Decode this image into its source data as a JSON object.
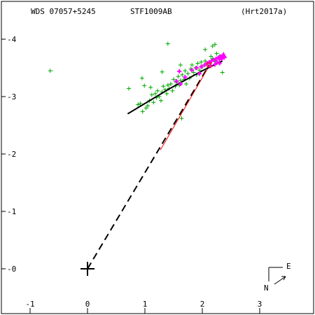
{
  "header": {
    "wds": "WDS 07057+5245",
    "discoverer": "STF1009AB",
    "reference": "(Hrt2017a)"
  },
  "compass": {
    "north": "N",
    "east": "E"
  },
  "colors": {
    "axes": "#000000",
    "measures": "#00aa00",
    "measure_dots": "#00bb00",
    "recent": "#ff00ff",
    "anchor": "#ff0000",
    "orbit": "#000000",
    "residual_line": "#ff0000"
  },
  "chart_data": {
    "type": "scatter",
    "title": "",
    "xlabel": "",
    "ylabel": "",
    "xlim": [
      -1.5,
      3.85
    ],
    "ylim": [
      4.4,
      -0.8
    ],
    "xticks": [
      -1,
      0,
      1,
      2,
      3
    ],
    "yticks": [
      -4,
      -3,
      -2,
      -1,
      0
    ],
    "xticklabels": [
      "-1",
      "0",
      "1",
      "2",
      "3"
    ],
    "yticklabels": [
      "-4",
      "-3",
      "-2",
      "-1",
      "-0"
    ],
    "primary_star": [
      0,
      0
    ],
    "companion_line": {
      "from": [
        0,
        0
      ],
      "to": [
        2.12,
        3.55
      ]
    },
    "residual_line": {
      "from": [
        1.27,
        2.07
      ],
      "to": [
        2.17,
        3.62
      ]
    },
    "orbit_path": [
      [
        0.7,
        2.7
      ],
      [
        1.45,
        3.15
      ],
      [
        2.0,
        3.45
      ],
      [
        2.35,
        3.62
      ]
    ],
    "green_measures": [
      [
        -0.65,
        3.45
      ],
      [
        0.72,
        3.14
      ],
      [
        0.88,
        2.86
      ],
      [
        0.92,
        2.88
      ],
      [
        0.96,
        2.74
      ],
      [
        1.02,
        2.8
      ],
      [
        1.05,
        2.84
      ],
      [
        1.08,
        2.93
      ],
      [
        1.12,
        3.03
      ],
      [
        1.15,
        2.9
      ],
      [
        1.18,
        3.05
      ],
      [
        1.2,
        2.98
      ],
      [
        1.22,
        3.1
      ],
      [
        1.25,
        3.0
      ],
      [
        1.28,
        2.93
      ],
      [
        1.3,
        3.08
      ],
      [
        1.32,
        3.18
      ],
      [
        1.35,
        3.12
      ],
      [
        1.38,
        3.05
      ],
      [
        1.4,
        3.2
      ],
      [
        1.42,
        3.14
      ],
      [
        1.45,
        3.22
      ],
      [
        1.48,
        3.1
      ],
      [
        1.5,
        3.3
      ],
      [
        1.53,
        3.18
      ],
      [
        1.55,
        3.25
      ],
      [
        1.58,
        3.35
      ],
      [
        1.6,
        3.2
      ],
      [
        1.62,
        3.28
      ],
      [
        1.65,
        3.38
      ],
      [
        1.68,
        3.3
      ],
      [
        1.7,
        3.45
      ],
      [
        1.72,
        3.22
      ],
      [
        1.75,
        3.4
      ],
      [
        1.78,
        3.32
      ],
      [
        1.8,
        3.48
      ],
      [
        1.82,
        3.55
      ],
      [
        1.85,
        3.42
      ],
      [
        1.88,
        3.5
      ],
      [
        1.9,
        3.38
      ],
      [
        1.92,
        3.58
      ],
      [
        1.95,
        3.46
      ],
      [
        1.98,
        3.6
      ],
      [
        2.0,
        3.52
      ],
      [
        2.05,
        3.62
      ],
      [
        2.1,
        3.58
      ],
      [
        2.15,
        3.7
      ],
      [
        2.18,
        3.66
      ],
      [
        2.22,
        3.62
      ],
      [
        2.25,
        3.75
      ],
      [
        2.3,
        3.7
      ],
      [
        2.35,
        3.42
      ],
      [
        1.4,
        3.92
      ],
      [
        0.95,
        3.32
      ],
      [
        1.1,
        3.16
      ],
      [
        0.99,
        3.19
      ],
      [
        1.64,
        2.62
      ],
      [
        1.62,
        3.55
      ],
      [
        2.05,
        3.82
      ],
      [
        2.18,
        3.88
      ],
      [
        2.22,
        3.91
      ],
      [
        1.3,
        3.43
      ]
    ],
    "magenta_measures": [
      [
        1.62,
        3.22
      ],
      [
        1.7,
        3.34
      ],
      [
        1.82,
        3.46
      ],
      [
        1.9,
        3.5
      ],
      [
        1.98,
        3.52
      ],
      [
        2.04,
        3.55
      ],
      [
        2.08,
        3.58
      ],
      [
        2.12,
        3.6
      ],
      [
        2.16,
        3.62
      ],
      [
        2.2,
        3.64
      ],
      [
        2.24,
        3.66
      ],
      [
        2.26,
        3.6
      ],
      [
        2.28,
        3.68
      ],
      [
        2.3,
        3.65
      ],
      [
        2.32,
        3.7
      ],
      [
        2.34,
        3.66
      ],
      [
        2.36,
        3.72
      ],
      [
        2.38,
        3.68
      ],
      [
        2.3,
        3.58
      ],
      [
        2.22,
        3.56
      ],
      [
        2.14,
        3.53
      ],
      [
        1.95,
        3.4
      ],
      [
        1.6,
        3.44
      ],
      [
        1.55,
        3.27
      ]
    ],
    "anchor_point": [
      2.12,
      3.55
    ]
  }
}
